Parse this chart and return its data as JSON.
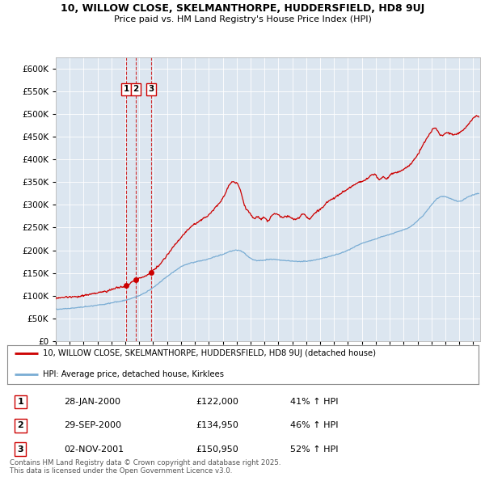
{
  "title_line1": "10, WILLOW CLOSE, SKELMANTHORPE, HUDDERSFIELD, HD8 9UJ",
  "title_line2": "Price paid vs. HM Land Registry's House Price Index (HPI)",
  "legend_label_red": "10, WILLOW CLOSE, SKELMANTHORPE, HUDDERSFIELD, HD8 9UJ (detached house)",
  "legend_label_blue": "HPI: Average price, detached house, Kirklees",
  "transactions": [
    {
      "num": 1,
      "date": "28-JAN-2000",
      "date_val": 2000.07,
      "price": 122000,
      "pct": "41% ↑ HPI"
    },
    {
      "num": 2,
      "date": "29-SEP-2000",
      "date_val": 2000.75,
      "price": 134950,
      "pct": "46% ↑ HPI"
    },
    {
      "num": 3,
      "date": "02-NOV-2001",
      "date_val": 2001.84,
      "price": 150950,
      "pct": "52% ↑ HPI"
    }
  ],
  "footer": "Contains HM Land Registry data © Crown copyright and database right 2025.\nThis data is licensed under the Open Government Licence v3.0.",
  "background_color": "#dce6f0",
  "plot_bg_color": "#dce6f0",
  "red_color": "#cc0000",
  "blue_color": "#7aadd4",
  "ylim": [
    0,
    625000
  ],
  "ytick_step": 50000,
  "xlim_start": 1995,
  "xlim_end": 2025.5
}
